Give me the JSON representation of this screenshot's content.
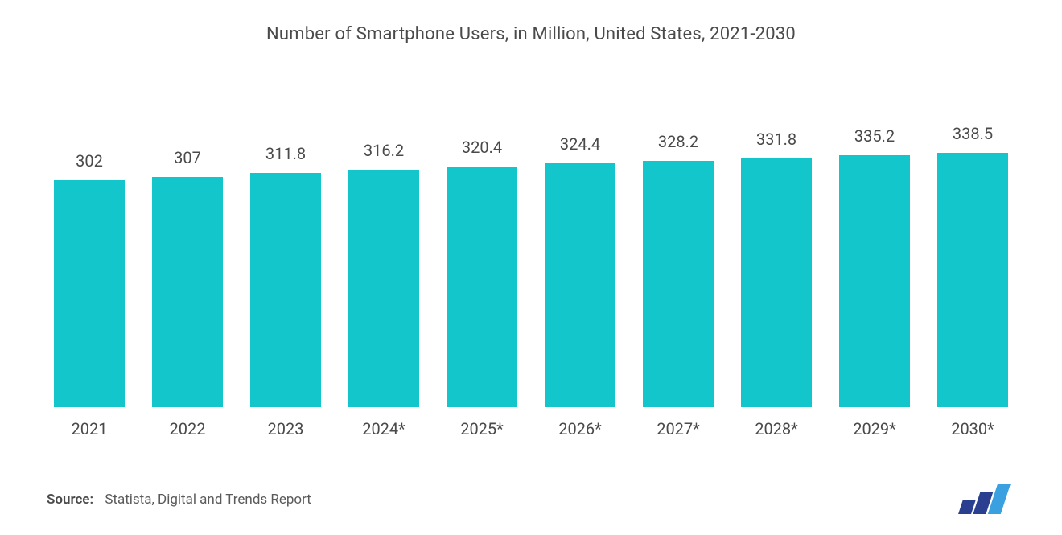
{
  "chart": {
    "type": "bar",
    "title": "Number of Smartphone Users, in Million, United States, 2021-2030",
    "title_fontsize": 22,
    "title_color": "#4a4a4a",
    "categories": [
      "2021",
      "2022",
      "2023",
      "2024*",
      "2025*",
      "2026*",
      "2027*",
      "2028*",
      "2029*",
      "2030*"
    ],
    "values": [
      302,
      307,
      311.8,
      316.2,
      320.4,
      324.4,
      328.2,
      331.8,
      335.2,
      338.5
    ],
    "value_labels": [
      "302",
      "307",
      "311.8",
      "316.2",
      "320.4",
      "324.4",
      "328.2",
      "331.8",
      "335.2",
      "338.5"
    ],
    "bar_color": "#12c6cb",
    "y_max": 430,
    "background_color": "#ffffff",
    "label_fontsize": 20,
    "label_color": "#4a4a4a",
    "bar_width_ratio": 0.74
  },
  "footer": {
    "source_label": "Source:",
    "source_text": "Statista, Digital and Trends Report",
    "divider_color": "#d9d9d9",
    "logo_colors": {
      "dark": "#2a3f8f",
      "light": "#3aa0e0"
    }
  }
}
